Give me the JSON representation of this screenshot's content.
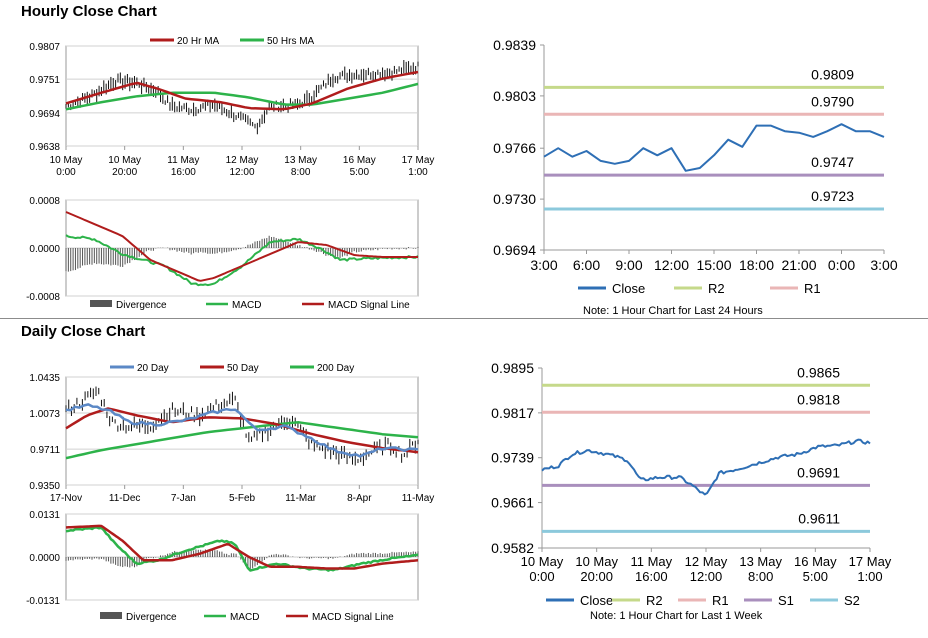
{
  "sections": {
    "hourly_title": "Hourly Close Chart",
    "daily_title": "Daily Close Chart",
    "hourly_note": "Note: 1 Hour Chart for Last 24 Hours",
    "weekly_note": "Note: 1 Hour Chart for Last 1 Week"
  },
  "colors": {
    "close": "#2e6fb5",
    "ma20": "#b01c1c",
    "ma50": "#2db34a",
    "ma200": "#2db34a",
    "day20": "#5b88c6",
    "divergence": "#555555",
    "r2": "#c5d98a",
    "r1": "#eab6b6",
    "s1": "#a98fbd",
    "s2": "#8cc9dc"
  },
  "chart_data": [
    {
      "id": "hourly-price",
      "type": "line",
      "ylim": [
        0.9638,
        0.9807
      ],
      "y_ticks": [
        "0.9807",
        "0.9751",
        "0.9694",
        "0.9638"
      ],
      "x_ticks": [
        [
          "10 May",
          "0:00"
        ],
        [
          "10 May",
          "20:00"
        ],
        [
          "11 May",
          "16:00"
        ],
        [
          "12 May",
          "12:00"
        ],
        [
          "13 May",
          "8:00"
        ],
        [
          "16 May",
          "5:00"
        ],
        [
          "17 May",
          "1:00"
        ]
      ],
      "legend": [
        "20 Hr MA",
        "50 Hrs MA"
      ],
      "anchors": {
        "price": [
          [
            0,
            0.9705
          ],
          [
            0.07,
            0.9722
          ],
          [
            0.14,
            0.9748
          ],
          [
            0.2,
            0.9745
          ],
          [
            0.26,
            0.973
          ],
          [
            0.3,
            0.9705
          ],
          [
            0.36,
            0.97
          ],
          [
            0.42,
            0.9708
          ],
          [
            0.48,
            0.969
          ],
          [
            0.54,
            0.967
          ],
          [
            0.58,
            0.9705
          ],
          [
            0.66,
            0.9708
          ],
          [
            0.7,
            0.9722
          ],
          [
            0.76,
            0.9755
          ],
          [
            0.84,
            0.976
          ],
          [
            0.92,
            0.9762
          ],
          [
            1,
            0.9772
          ]
        ],
        "ma20": [
          [
            0,
            0.971
          ],
          [
            0.1,
            0.9728
          ],
          [
            0.2,
            0.9745
          ],
          [
            0.26,
            0.9735
          ],
          [
            0.34,
            0.9718
          ],
          [
            0.44,
            0.9712
          ],
          [
            0.52,
            0.9702
          ],
          [
            0.62,
            0.97
          ],
          [
            0.7,
            0.971
          ],
          [
            0.8,
            0.9735
          ],
          [
            0.9,
            0.9752
          ],
          [
            1,
            0.9763
          ]
        ],
        "ma50": [
          [
            0,
            0.97
          ],
          [
            0.1,
            0.9712
          ],
          [
            0.2,
            0.9722
          ],
          [
            0.3,
            0.9728
          ],
          [
            0.42,
            0.9728
          ],
          [
            0.52,
            0.972
          ],
          [
            0.62,
            0.9708
          ],
          [
            0.7,
            0.9708
          ],
          [
            0.8,
            0.9718
          ],
          [
            0.9,
            0.9728
          ],
          [
            1,
            0.9743
          ]
        ]
      }
    },
    {
      "id": "hourly-macd",
      "type": "line",
      "ylim": [
        -0.0008,
        0.0008
      ],
      "y_ticks": [
        "0.0008",
        "0.0000",
        "-0.0008"
      ],
      "legend": [
        "Divergence",
        "MACD",
        "MACD Signal Line"
      ],
      "anchors": {
        "macd": [
          [
            0,
            0.0002
          ],
          [
            0.08,
            0.00015
          ],
          [
            0.16,
            -0.0001
          ],
          [
            0.28,
            -0.0003
          ],
          [
            0.36,
            -0.0006
          ],
          [
            0.42,
            -0.0006
          ],
          [
            0.5,
            -0.0003
          ],
          [
            0.58,
            0.0001
          ],
          [
            0.66,
            0.00015
          ],
          [
            0.72,
            0.0
          ],
          [
            0.78,
            -0.0002
          ],
          [
            0.84,
            -0.00018
          ],
          [
            0.92,
            -0.00016
          ],
          [
            1,
            -0.00015
          ]
        ],
        "signal": [
          [
            0,
            0.0006
          ],
          [
            0.08,
            0.0004
          ],
          [
            0.16,
            0.0002
          ],
          [
            0.24,
            -0.0002
          ],
          [
            0.32,
            -0.0004
          ],
          [
            0.38,
            -0.00055
          ],
          [
            0.42,
            -0.0005
          ],
          [
            0.5,
            -0.0003
          ],
          [
            0.58,
            -0.0001
          ],
          [
            0.66,
            0.0001
          ],
          [
            0.74,
            5e-05
          ],
          [
            0.82,
            -0.00012
          ],
          [
            0.9,
            -0.00015
          ],
          [
            1,
            -0.00015
          ]
        ]
      }
    },
    {
      "id": "hourly-pivots",
      "type": "line",
      "ylim": [
        0.9694,
        0.9839
      ],
      "y_ticks": [
        "0.9839",
        "0.9803",
        "0.9766",
        "0.9730",
        "0.9694"
      ],
      "x_ticks": [
        "3:00",
        "6:00",
        "9:00",
        "12:00",
        "15:00",
        "18:00",
        "21:00",
        "0:00",
        "3:00"
      ],
      "levels": [
        {
          "name": "R2",
          "value": 0.9809,
          "label": "0.9809"
        },
        {
          "name": "R1",
          "value": 0.979,
          "label": "0.9790"
        },
        {
          "name": "S1",
          "value": 0.9747,
          "label": "0.9747"
        },
        {
          "name": "S2",
          "value": 0.9723,
          "label": "0.9723"
        }
      ],
      "legend": [
        "Close",
        "R2",
        "R1"
      ],
      "series": [
        {
          "name": "Close",
          "values": [
            0.976,
            0.9766,
            0.976,
            0.9764,
            0.9757,
            0.9755,
            0.9757,
            0.9766,
            0.9761,
            0.9766,
            0.975,
            0.9752,
            0.9761,
            0.9772,
            0.9767,
            0.9782,
            0.9782,
            0.9778,
            0.9777,
            0.9774,
            0.9778,
            0.9783,
            0.9778,
            0.9778,
            0.9774
          ]
        }
      ]
    },
    {
      "id": "daily-price",
      "type": "line",
      "ylim": [
        0.935,
        1.0435
      ],
      "y_ticks": [
        "1.0435",
        "1.0073",
        "0.9711",
        "0.9350"
      ],
      "x_ticks": [
        "17-Nov",
        "11-Dec",
        "7-Jan",
        "5-Feb",
        "11-Mar",
        "8-Apr",
        "11-May"
      ],
      "legend": [
        "20 Day",
        "50 Day",
        "200 Day"
      ],
      "anchors": {
        "price": [
          [
            0,
            1.01
          ],
          [
            0.05,
            1.02
          ],
          [
            0.09,
            1.03
          ],
          [
            0.13,
            0.998
          ],
          [
            0.18,
            0.994
          ],
          [
            0.24,
            0.995
          ],
          [
            0.3,
            1.01
          ],
          [
            0.38,
            1.005
          ],
          [
            0.43,
            1.015
          ],
          [
            0.48,
            1.02
          ],
          [
            0.52,
            0.978
          ],
          [
            0.58,
            0.992
          ],
          [
            0.64,
            1.002
          ],
          [
            0.7,
            0.975
          ],
          [
            0.76,
            0.968
          ],
          [
            0.82,
            0.96
          ],
          [
            0.88,
            0.97
          ],
          [
            0.92,
            0.975
          ],
          [
            0.96,
            0.965
          ],
          [
            1,
            0.98
          ]
        ],
        "day20": [
          [
            0,
            1.01
          ],
          [
            0.06,
            1.015
          ],
          [
            0.12,
            1.01
          ],
          [
            0.18,
            0.998
          ],
          [
            0.26,
            0.996
          ],
          [
            0.34,
            1.0
          ],
          [
            0.42,
            1.008
          ],
          [
            0.48,
            1.012
          ],
          [
            0.54,
            0.99
          ],
          [
            0.62,
            0.994
          ],
          [
            0.68,
            0.985
          ],
          [
            0.76,
            0.97
          ],
          [
            0.84,
            0.964
          ],
          [
            0.9,
            0.972
          ],
          [
            1,
            0.97
          ]
        ],
        "day50": [
          [
            0,
            0.992
          ],
          [
            0.06,
            1.005
          ],
          [
            0.12,
            1.012
          ],
          [
            0.2,
            1.005
          ],
          [
            0.3,
            0.998
          ],
          [
            0.4,
            1.003
          ],
          [
            0.5,
            1.002
          ],
          [
            0.6,
            0.996
          ],
          [
            0.7,
            0.986
          ],
          [
            0.8,
            0.978
          ],
          [
            0.9,
            0.972
          ],
          [
            1,
            0.968
          ]
        ],
        "day200": [
          [
            0,
            0.962
          ],
          [
            0.1,
            0.97
          ],
          [
            0.2,
            0.976
          ],
          [
            0.3,
            0.982
          ],
          [
            0.4,
            0.988
          ],
          [
            0.5,
            0.992
          ],
          [
            0.6,
            0.996
          ],
          [
            0.66,
            0.998
          ],
          [
            0.74,
            0.994
          ],
          [
            0.82,
            0.99
          ],
          [
            0.9,
            0.986
          ],
          [
            1,
            0.983
          ]
        ]
      }
    },
    {
      "id": "daily-macd",
      "type": "line",
      "ylim": [
        -0.0131,
        0.0131
      ],
      "y_ticks": [
        "0.0131",
        "0.0000",
        "-0.0131"
      ],
      "legend": [
        "Divergence",
        "MACD",
        "MACD Signal Line"
      ],
      "anchors": {
        "macd": [
          [
            0,
            0.008
          ],
          [
            0.1,
            0.009
          ],
          [
            0.14,
            0.004
          ],
          [
            0.2,
            -0.002
          ],
          [
            0.26,
            -0.001
          ],
          [
            0.34,
            0.002
          ],
          [
            0.44,
            0.005
          ],
          [
            0.48,
            0.004
          ],
          [
            0.52,
            -0.004
          ],
          [
            0.6,
            -0.002
          ],
          [
            0.68,
            -0.0035
          ],
          [
            0.76,
            -0.004
          ],
          [
            0.84,
            -0.002
          ],
          [
            0.92,
            -0.0005
          ],
          [
            1,
            0.0005
          ]
        ],
        "signal": [
          [
            0,
            0.009
          ],
          [
            0.1,
            0.0095
          ],
          [
            0.16,
            0.005
          ],
          [
            0.22,
            -0.001
          ],
          [
            0.3,
            -0.001
          ],
          [
            0.38,
            0.001
          ],
          [
            0.46,
            0.004
          ],
          [
            0.52,
            0.0
          ],
          [
            0.58,
            -0.003
          ],
          [
            0.66,
            -0.003
          ],
          [
            0.74,
            -0.0035
          ],
          [
            0.82,
            -0.0035
          ],
          [
            0.9,
            -0.002
          ],
          [
            1,
            -0.001
          ]
        ]
      }
    },
    {
      "id": "weekly-pivots",
      "type": "line",
      "ylim": [
        0.9582,
        0.9895
      ],
      "y_ticks": [
        "0.9895",
        "0.9817",
        "0.9739",
        "0.9661",
        "0.9582"
      ],
      "x_ticks": [
        [
          "10 May",
          "0:00"
        ],
        [
          "10 May",
          "20:00"
        ],
        [
          "11 May",
          "16:00"
        ],
        [
          "12 May",
          "12:00"
        ],
        [
          "13 May",
          "8:00"
        ],
        [
          "16 May",
          "5:00"
        ],
        [
          "17 May",
          "1:00"
        ]
      ],
      "levels": [
        {
          "name": "R2",
          "value": 0.9865,
          "label": "0.9865"
        },
        {
          "name": "R1",
          "value": 0.9818,
          "label": "0.9818"
        },
        {
          "name": "S1",
          "value": 0.9691,
          "label": "0.9691"
        },
        {
          "name": "S2",
          "value": 0.9611,
          "label": "0.9611"
        }
      ],
      "legend": [
        "Close",
        "R2",
        "R1",
        "S1",
        "S2"
      ],
      "anchors": {
        "close": [
          [
            0,
            0.9718
          ],
          [
            0.05,
            0.9725
          ],
          [
            0.09,
            0.9745
          ],
          [
            0.14,
            0.9752
          ],
          [
            0.2,
            0.9745
          ],
          [
            0.26,
            0.9735
          ],
          [
            0.3,
            0.97
          ],
          [
            0.36,
            0.9705
          ],
          [
            0.42,
            0.9705
          ],
          [
            0.46,
            0.969
          ],
          [
            0.5,
            0.9672
          ],
          [
            0.54,
            0.9712
          ],
          [
            0.6,
            0.972
          ],
          [
            0.66,
            0.973
          ],
          [
            0.72,
            0.974
          ],
          [
            0.78,
            0.9745
          ],
          [
            0.84,
            0.9758
          ],
          [
            0.9,
            0.976
          ],
          [
            0.96,
            0.9768
          ],
          [
            1,
            0.9765
          ]
        ]
      }
    }
  ]
}
